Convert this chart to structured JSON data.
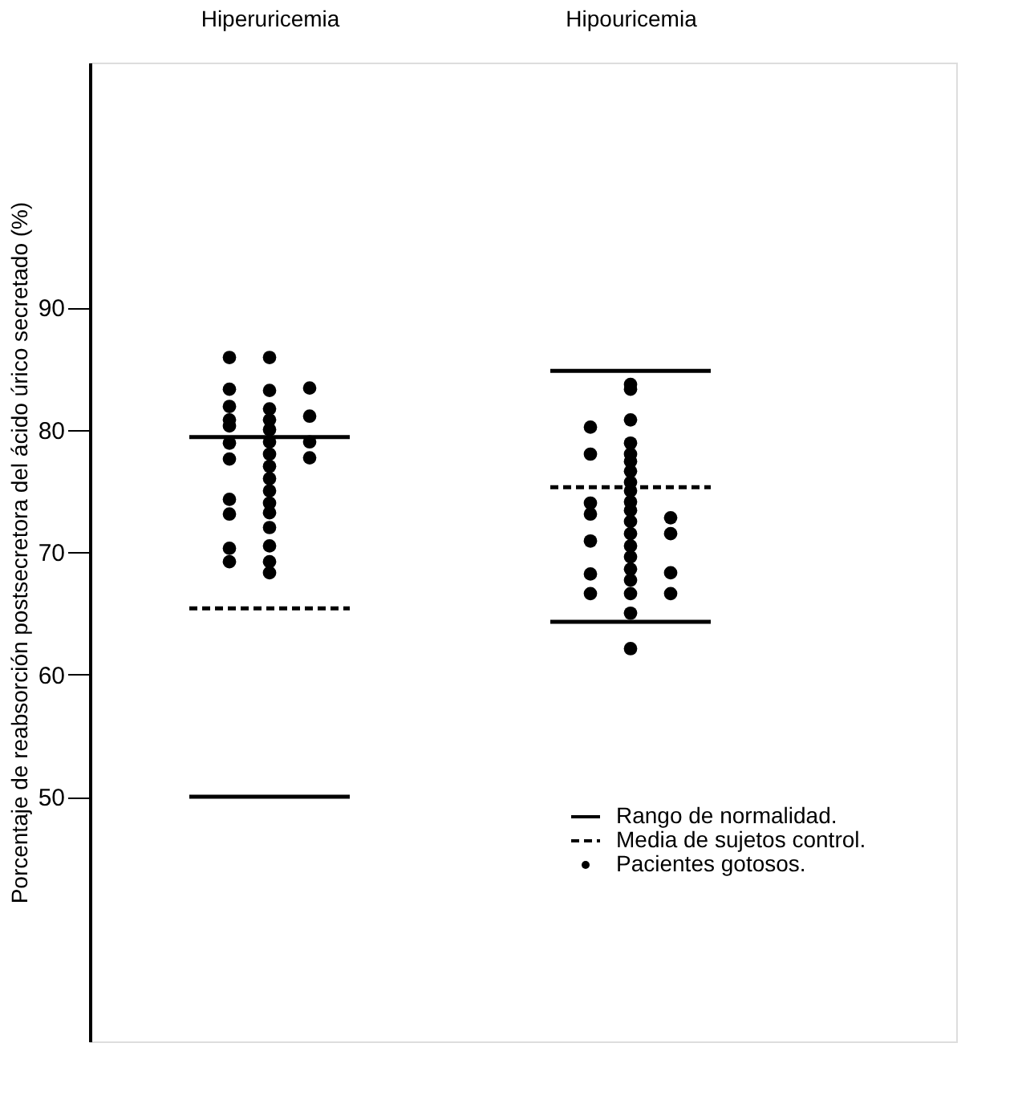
{
  "chart_data": {
    "type": "scatter",
    "ylabel": "Porcentaje de reabsorción postsecretora del ácido úrico secretado (%)",
    "categories": [
      null,
      null,
      "Hiperuricemia",
      null,
      null,
      null,
      null,
      null,
      null,
      null,
      null,
      "Hipouricemia",
      null,
      null
    ],
    "ylim": [
      30,
      110
    ],
    "yticks": [
      50,
      60,
      70,
      80,
      90
    ],
    "grid": false,
    "legend": "bottom right",
    "marker": "circle",
    "series": [
      {
        "name": "Rango de normalidad.",
        "type": "line",
        "marker": "none",
        "line_style": "solid",
        "color": "#000000",
        "values": [
          79.4,
          79.4,
          79.4,
          79.4,
          79.4,
          null,
          null,
          null,
          null,
          84.8,
          84.8,
          84.8,
          84.8,
          84.8
        ]
      },
      {
        "type": "line",
        "marker": "none",
        "line_style": "solid",
        "color": "#000000",
        "values": [
          50,
          50,
          50,
          50,
          50,
          null,
          null,
          null,
          null,
          64.3,
          64.3,
          64.3,
          64.3,
          64.3
        ]
      },
      {
        "name": "Media de sujetos control.",
        "type": "line",
        "marker": "none",
        "line_style": "dashed",
        "color": "#000000",
        "values": [
          65.4,
          65.4,
          65.4,
          65.4,
          65.4,
          null,
          null,
          null,
          null,
          75.3,
          75.3,
          75.3,
          75.3,
          75.3
        ]
      },
      {
        "name": "Pacientes gotosos.",
        "color": "#000000",
        "values": [
          null,
          85.9,
          85.9,
          83.4,
          null,
          null,
          null,
          null,
          null,
          null,
          80.2,
          83.7,
          72.8,
          null
        ]
      },
      {
        "color": "#000000",
        "values": [
          null,
          83.3,
          83.2,
          81.1,
          null,
          null,
          null,
          null,
          null,
          null,
          78.0,
          83.3,
          71.5,
          null
        ]
      },
      {
        "color": "#000000",
        "values": [
          null,
          81.9,
          81.7,
          79,
          null,
          null,
          null,
          null,
          null,
          null,
          74.0,
          80.8,
          68.3,
          null
        ]
      },
      {
        "color": "#000000",
        "values": [
          null,
          80.8,
          80.8,
          77.7,
          null,
          null,
          null,
          null,
          null,
          null,
          73.1,
          78.9,
          66.6,
          null
        ]
      },
      {
        "color": "#000000",
        "values": [
          null,
          80.3,
          80,
          null,
          null,
          null,
          null,
          null,
          null,
          null,
          70.9,
          78,
          null,
          null
        ]
      },
      {
        "color": "#000000",
        "values": [
          null,
          78.9,
          79,
          null,
          null,
          null,
          null,
          null,
          null,
          null,
          68.2,
          77.4,
          null,
          null
        ]
      },
      {
        "color": "#000000",
        "values": [
          null,
          77.6,
          78,
          null,
          null,
          null,
          null,
          null,
          null,
          null,
          66.6,
          76.6,
          null,
          null
        ]
      },
      {
        "color": "#000000",
        "values": [
          null,
          74.3,
          77,
          null,
          null,
          null,
          null,
          null,
          null,
          null,
          null,
          75.7,
          null,
          null
        ]
      },
      {
        "color": "#000000",
        "values": [
          null,
          73.1,
          76,
          null,
          null,
          null,
          null,
          null,
          null,
          null,
          null,
          75,
          null,
          null
        ]
      },
      {
        "color": "#000000",
        "values": [
          null,
          70.3,
          75,
          null,
          null,
          null,
          null,
          null,
          null,
          null,
          null,
          74.1,
          null,
          null
        ]
      },
      {
        "color": "#000000",
        "values": [
          null,
          69.2,
          74,
          null,
          null,
          null,
          null,
          null,
          null,
          null,
          null,
          73.4,
          null,
          null
        ]
      },
      {
        "color": "#000000",
        "values": [
          null,
          null,
          73.2,
          null,
          null,
          null,
          null,
          null,
          null,
          null,
          null,
          72.5,
          null,
          null
        ]
      },
      {
        "color": "#000000",
        "values": [
          null,
          null,
          72,
          null,
          null,
          null,
          null,
          null,
          null,
          null,
          null,
          71.5,
          null,
          null
        ]
      },
      {
        "color": "#000000",
        "values": [
          null,
          null,
          70.5,
          null,
          null,
          null,
          null,
          null,
          null,
          null,
          null,
          70.5,
          null,
          null
        ]
      },
      {
        "color": "#000000",
        "values": [
          null,
          null,
          69.2,
          null,
          null,
          null,
          null,
          null,
          null,
          null,
          null,
          69.6,
          null,
          null
        ]
      },
      {
        "color": "#000000",
        "values": [
          null,
          null,
          68.3,
          null,
          null,
          null,
          null,
          null,
          null,
          null,
          null,
          68.6,
          null,
          null
        ]
      },
      {
        "color": "#000000",
        "values": [
          null,
          null,
          null,
          null,
          null,
          null,
          null,
          null,
          null,
          null,
          null,
          67.7,
          null,
          null
        ]
      },
      {
        "color": "#000000",
        "values": [
          null,
          null,
          null,
          null,
          null,
          null,
          null,
          null,
          null,
          null,
          null,
          66.6,
          null,
          null
        ]
      },
      {
        "color": "#000000",
        "values": [
          null,
          null,
          null,
          null,
          null,
          null,
          null,
          null,
          null,
          null,
          null,
          65,
          null,
          null
        ]
      },
      {
        "color": "#000000",
        "values": [
          null,
          null,
          null,
          null,
          null,
          null,
          null,
          null,
          null,
          null,
          null,
          62.1,
          null,
          null
        ]
      }
    ]
  }
}
